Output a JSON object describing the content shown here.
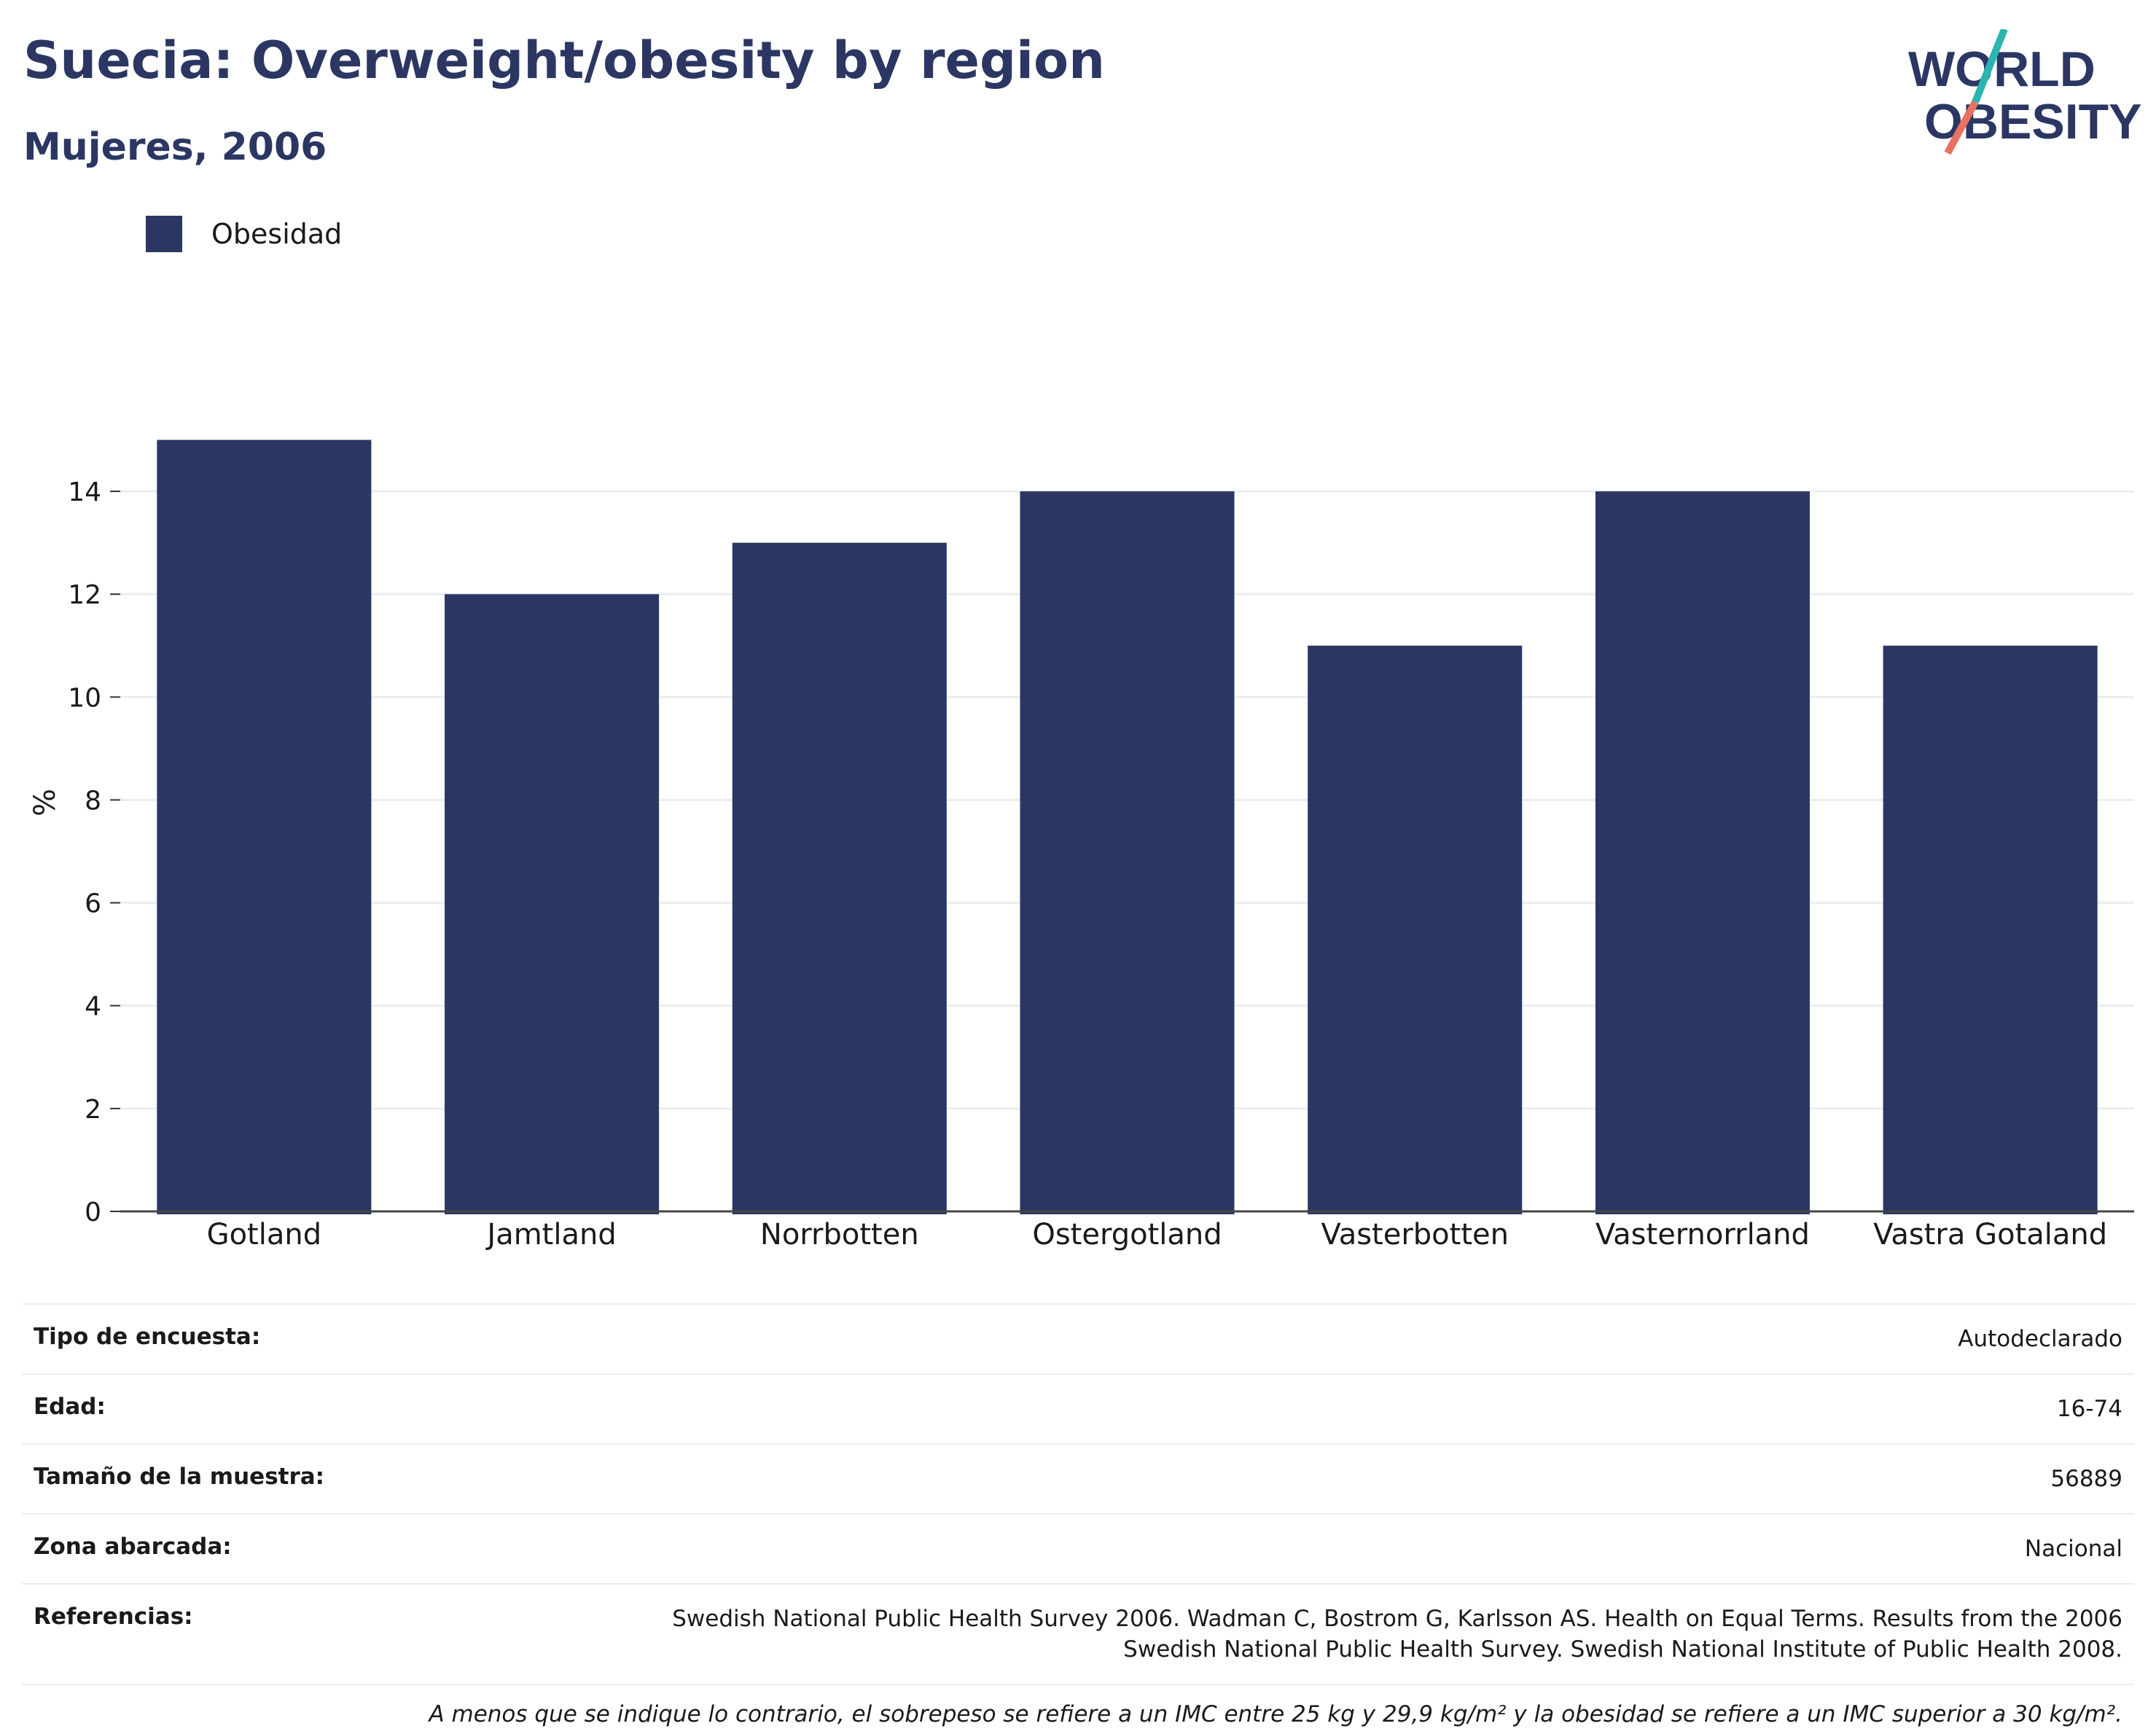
{
  "header": {
    "title": "Suecia: Overweight/obesity by region",
    "subtitle": "Mujeres, 2006"
  },
  "logo": {
    "line1": "WORLD",
    "line2": "OBESITY",
    "colors": {
      "text": "#2b3663",
      "slash_top": "#2ab5b0",
      "slash_bottom": "#e8715f"
    }
  },
  "legend": {
    "items": [
      {
        "label": "Obesidad",
        "color": "#2b3663"
      }
    ]
  },
  "chart_data": {
    "type": "bar",
    "categories": [
      "Gotland",
      "Jamtland",
      "Norrbotten",
      "Ostergotland",
      "Vasterbotten",
      "Vasternorrland",
      "Vastra Gotaland"
    ],
    "series": [
      {
        "name": "Obesidad",
        "values": [
          15,
          12,
          13,
          14,
          11,
          14,
          11
        ],
        "color": "#2b3663"
      }
    ],
    "ylabel": "%",
    "xlabel": "",
    "ylim": [
      0,
      15.9
    ],
    "yticks": [
      0,
      2,
      4,
      6,
      8,
      10,
      12,
      14
    ],
    "grid": true,
    "legend_position": "top-left"
  },
  "info": {
    "rows": [
      {
        "key": "Tipo de encuesta:",
        "value": "Autodeclarado"
      },
      {
        "key": "Edad:",
        "value": "16-74"
      },
      {
        "key": "Tamaño de la muestra:",
        "value": "56889"
      },
      {
        "key": "Zona abarcada:",
        "value": "Nacional"
      },
      {
        "key": "Referencias:",
        "value": "Swedish National Public Health Survey 2006. Wadman C, Bostrom G, Karlsson AS. Health on Equal Terms. Results from the 2006 Swedish National Public Health Survey. Swedish National Institute of Public Health 2008."
      }
    ],
    "note": "A menos que se indique lo contrario, el sobrepeso se refiere a un IMC entre 25 kg y 29,9 kg/m² y la obesidad se refiere a un IMC superior a 30 kg/m²."
  }
}
